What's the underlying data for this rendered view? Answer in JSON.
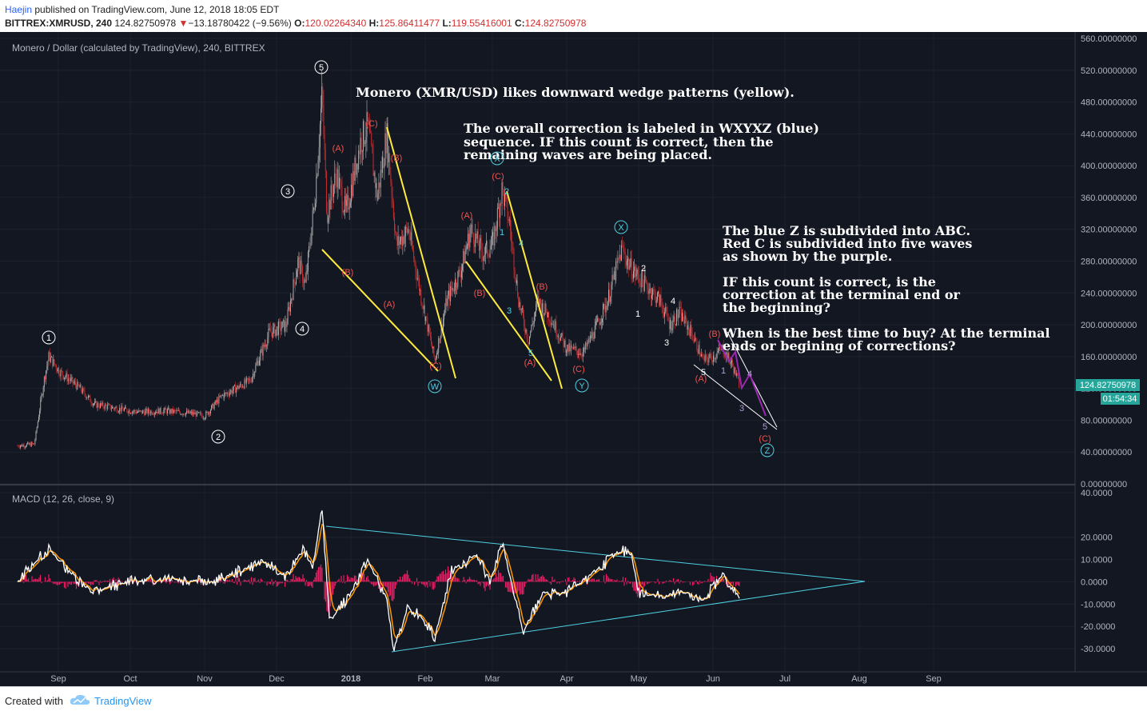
{
  "header": {
    "author": "Haejin",
    "published_text": "published on TradingView.com, June 12, 2018 18:05 EDT",
    "symbol": "BITTREX:XMRUSD, 240",
    "last": "124.82750978",
    "change_arrow": "▼",
    "change": "−13.18780422 (−9.56%)",
    "o_label": "O:",
    "o": "120.02264340",
    "h_label": "H:",
    "h": "125.86411477",
    "l_label": "L:",
    "l": "119.55416001",
    "c_label": "C:",
    "c": "124.82750978"
  },
  "footer": {
    "created_with": "Created with",
    "brand": "TradingView",
    "icon": "tradingview-cloud-icon"
  },
  "colors": {
    "background": "#131722",
    "candle_up": "#b5b5b5",
    "candle_down": "#d32f2f",
    "wedge": "#ffeb3b",
    "wave_red": "#ef5350",
    "wave_blue": "#4dd0e1",
    "wave_purple": "#9c27b0",
    "macd_line": "#ffffff",
    "signal_line": "#ff9800",
    "histogram": "#e91e63",
    "triangle": "#4dd0e1",
    "price_tag": "#26a69a"
  },
  "chart_data": [
    {
      "type": "candlestick",
      "title": "Monero / Dollar (calculated by TradingView), 240, BITTREX",
      "x_ticks": [
        "Sep",
        "Oct",
        "Nov",
        "Dec",
        "2018",
        "Feb",
        "Mar",
        "Apr",
        "May",
        "Jun",
        "Jul",
        "Aug",
        "Sep"
      ],
      "y_ticks": [
        "560.00000000",
        "520.00000000",
        "480.00000000",
        "440.00000000",
        "400.00000000",
        "360.00000000",
        "320.00000000",
        "280.00000000",
        "240.00000000",
        "200.00000000",
        "160.00000000",
        "120.00000000",
        "80.00000000",
        "40.00000000",
        "0.00000000"
      ],
      "ylim": [
        0,
        560
      ],
      "last_price_tag": "124.82750978",
      "countdown_tag": "01:54:34",
      "approx_close_path": [
        {
          "x": "2017-08-15",
          "y": 48
        },
        {
          "x": "2017-08-22",
          "y": 50
        },
        {
          "x": "2017-08-26",
          "y": 130
        },
        {
          "x": "2017-08-28",
          "y": 160
        },
        {
          "x": "2017-09-02",
          "y": 140
        },
        {
          "x": "2017-09-10",
          "y": 120
        },
        {
          "x": "2017-09-16",
          "y": 100
        },
        {
          "x": "2017-09-25",
          "y": 95
        },
        {
          "x": "2017-10-05",
          "y": 90
        },
        {
          "x": "2017-10-15",
          "y": 92
        },
        {
          "x": "2017-10-28",
          "y": 88
        },
        {
          "x": "2017-11-01",
          "y": 85
        },
        {
          "x": "2017-11-08",
          "y": 110
        },
        {
          "x": "2017-11-20",
          "y": 130
        },
        {
          "x": "2017-11-28",
          "y": 190
        },
        {
          "x": "2017-12-05",
          "y": 200
        },
        {
          "x": "2017-12-10",
          "y": 280
        },
        {
          "x": "2017-12-13",
          "y": 250
        },
        {
          "x": "2017-12-17",
          "y": 360
        },
        {
          "x": "2017-12-20",
          "y": 490
        },
        {
          "x": "2017-12-22",
          "y": 340
        },
        {
          "x": "2017-12-26",
          "y": 390
        },
        {
          "x": "2017-12-30",
          "y": 340
        },
        {
          "x": "2018-01-05",
          "y": 430
        },
        {
          "x": "2018-01-08",
          "y": 450
        },
        {
          "x": "2018-01-12",
          "y": 360
        },
        {
          "x": "2018-01-16",
          "y": 440
        },
        {
          "x": "2018-01-20",
          "y": 300
        },
        {
          "x": "2018-01-25",
          "y": 320
        },
        {
          "x": "2018-01-30",
          "y": 240
        },
        {
          "x": "2018-02-05",
          "y": 155
        },
        {
          "x": "2018-02-10",
          "y": 230
        },
        {
          "x": "2018-02-16",
          "y": 270
        },
        {
          "x": "2018-02-20",
          "y": 320
        },
        {
          "x": "2018-02-25",
          "y": 290
        },
        {
          "x": "2018-03-01",
          "y": 300
        },
        {
          "x": "2018-03-05",
          "y": 370
        },
        {
          "x": "2018-03-08",
          "y": 330
        },
        {
          "x": "2018-03-12",
          "y": 230
        },
        {
          "x": "2018-03-16",
          "y": 180
        },
        {
          "x": "2018-03-20",
          "y": 230
        },
        {
          "x": "2018-03-25",
          "y": 210
        },
        {
          "x": "2018-04-01",
          "y": 170
        },
        {
          "x": "2018-04-08",
          "y": 165
        },
        {
          "x": "2018-04-13",
          "y": 195
        },
        {
          "x": "2018-04-18",
          "y": 230
        },
        {
          "x": "2018-04-24",
          "y": 295
        },
        {
          "x": "2018-04-28",
          "y": 270
        },
        {
          "x": "2018-05-04",
          "y": 250
        },
        {
          "x": "2018-05-10",
          "y": 230
        },
        {
          "x": "2018-05-14",
          "y": 200
        },
        {
          "x": "2018-05-18",
          "y": 215
        },
        {
          "x": "2018-05-23",
          "y": 190
        },
        {
          "x": "2018-05-28",
          "y": 155
        },
        {
          "x": "2018-06-01",
          "y": 160
        },
        {
          "x": "2018-06-05",
          "y": 170
        },
        {
          "x": "2018-06-09",
          "y": 150
        },
        {
          "x": "2018-06-12",
          "y": 125
        }
      ]
    },
    {
      "type": "line",
      "title": "MACD (12, 26, close, 9)",
      "y_ticks": [
        "40.0000",
        "20.0000",
        "10.0000",
        "0.0000",
        "-10.0000",
        "-20.0000",
        "-30.0000"
      ],
      "ylim": [
        -37,
        40
      ],
      "approx_macd_path": [
        {
          "x": "2017-08-15",
          "y": 0
        },
        {
          "x": "2017-08-25",
          "y": 12
        },
        {
          "x": "2017-08-28",
          "y": 15
        },
        {
          "x": "2017-09-05",
          "y": 5
        },
        {
          "x": "2017-09-15",
          "y": -4
        },
        {
          "x": "2017-10-01",
          "y": 0
        },
        {
          "x": "2017-10-20",
          "y": 1
        },
        {
          "x": "2017-11-05",
          "y": 0
        },
        {
          "x": "2017-11-25",
          "y": 9
        },
        {
          "x": "2017-12-05",
          "y": 2
        },
        {
          "x": "2017-12-12",
          "y": 15
        },
        {
          "x": "2017-12-16",
          "y": 5
        },
        {
          "x": "2017-12-20",
          "y": 34
        },
        {
          "x": "2017-12-23",
          "y": -18
        },
        {
          "x": "2018-01-01",
          "y": -5
        },
        {
          "x": "2018-01-08",
          "y": 10
        },
        {
          "x": "2018-01-16",
          "y": -8
        },
        {
          "x": "2018-01-19",
          "y": -32
        },
        {
          "x": "2018-01-25",
          "y": -10
        },
        {
          "x": "2018-02-01",
          "y": -18
        },
        {
          "x": "2018-02-05",
          "y": -25
        },
        {
          "x": "2018-02-12",
          "y": 5
        },
        {
          "x": "2018-02-22",
          "y": 12
        },
        {
          "x": "2018-02-28",
          "y": 0
        },
        {
          "x": "2018-03-05",
          "y": 17
        },
        {
          "x": "2018-03-10",
          "y": -5
        },
        {
          "x": "2018-03-14",
          "y": -22
        },
        {
          "x": "2018-03-22",
          "y": -5
        },
        {
          "x": "2018-04-01",
          "y": -5
        },
        {
          "x": "2018-04-10",
          "y": 2
        },
        {
          "x": "2018-04-24",
          "y": 15
        },
        {
          "x": "2018-04-28",
          "y": 12
        },
        {
          "x": "2018-05-01",
          "y": -5
        },
        {
          "x": "2018-05-10",
          "y": -7
        },
        {
          "x": "2018-05-20",
          "y": -5
        },
        {
          "x": "2018-05-28",
          "y": -8
        },
        {
          "x": "2018-06-05",
          "y": 3
        },
        {
          "x": "2018-06-12",
          "y": -7
        }
      ]
    }
  ],
  "annotations": {
    "note1": "Monero (XMR/USD) likes downward wedge patterns (yellow).",
    "note2_l1": "The overall correction is labeled in WXYXZ (blue)",
    "note2_l2": "sequence. IF this count is correct, then the",
    "note2_l3": "remaining waves are being placed.",
    "note3_l1": "The blue Z is subdivided into ABC.",
    "note3_l2": "Red C is subdivided into five waves",
    "note3_l3": "as shown by the purple.",
    "note4_l1": "IF this count is correct, is the",
    "note4_l2": "correction at the terminal end or",
    "note4_l3": "the beginning?",
    "note5_l1": "When is the best time to buy? At the terminal",
    "note5_l2": "ends or begining of corrections?"
  },
  "wave_labels": {
    "c1": "1",
    "c2": "2",
    "c3": "3",
    "c4": "4",
    "c5": "5",
    "bW": "W",
    "bX1": "X",
    "bY": "Y",
    "bX2": "X",
    "bZ": "Z",
    "rA": "(A)",
    "rB": "(B)",
    "rC": "(C)",
    "p1": "1",
    "p3": "3",
    "p4": "4",
    "p5": "5",
    "n1": "1",
    "n2": "2",
    "n3": "3",
    "n4": "4",
    "n5": "5"
  }
}
